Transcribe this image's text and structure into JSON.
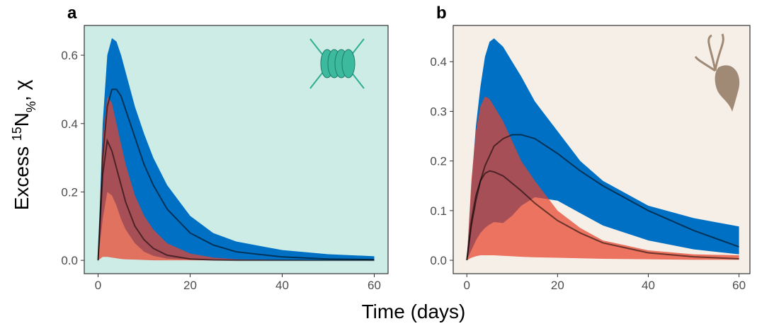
{
  "y_label": {
    "prefix": "Excess ",
    "sup": "15",
    "main": "N",
    "sub": "%",
    "suffix": ", χ"
  },
  "x_label": "Time (days)",
  "chart_data": [
    {
      "type": "ribbon",
      "panel": "a",
      "background": "#cdece6",
      "x": [
        0,
        1,
        2,
        3,
        4,
        5,
        6,
        8,
        10,
        12,
        15,
        20,
        25,
        30,
        40,
        50,
        60
      ],
      "xlim": [
        -3,
        63
      ],
      "xticks": [
        0,
        20,
        40,
        60
      ],
      "ylim": [
        -0.039,
        0.687
      ],
      "yticks": [
        {
          "value": 0,
          "label": "0.0"
        },
        0.2,
        0.4,
        0.6
      ],
      "series": [
        {
          "color": "#0070c4",
          "upper": [
            0,
            0.4,
            0.6,
            0.65,
            0.64,
            0.6,
            0.55,
            0.45,
            0.37,
            0.3,
            0.22,
            0.13,
            0.08,
            0.055,
            0.03,
            0.018,
            0.012
          ],
          "lower": [
            0,
            0.12,
            0.2,
            0.19,
            0.16,
            0.12,
            0.09,
            0.05,
            0.025,
            0.013,
            0.005,
            0.002,
            0.001,
            0,
            0,
            0,
            0
          ],
          "median": [
            0,
            0.3,
            0.45,
            0.5,
            0.5,
            0.48,
            0.44,
            0.36,
            0.28,
            0.22,
            0.15,
            0.08,
            0.045,
            0.025,
            0.01,
            0.004,
            0.002
          ]
        },
        {
          "color": "#e8432b",
          "upper": [
            0,
            0.35,
            0.48,
            0.46,
            0.4,
            0.34,
            0.28,
            0.19,
            0.13,
            0.09,
            0.05,
            0.02,
            0.008,
            0.003,
            0.001,
            0,
            0
          ],
          "lower": [
            0,
            0.01,
            0.01,
            0.008,
            0.006,
            0.004,
            0.003,
            0.002,
            0.001,
            0,
            0,
            0,
            0,
            0,
            0,
            0,
            0
          ],
          "median": [
            0,
            0.25,
            0.35,
            0.32,
            0.27,
            0.22,
            0.17,
            0.1,
            0.06,
            0.035,
            0.015,
            0.004,
            0.001,
            0,
            0,
            0,
            0
          ]
        }
      ]
    },
    {
      "type": "ribbon",
      "panel": "b",
      "background": "#f5efe8",
      "x": [
        0,
        1,
        2,
        3,
        4,
        5,
        6,
        8,
        10,
        12,
        15,
        20,
        25,
        30,
        40,
        50,
        60
      ],
      "xlim": [
        -3,
        62.4
      ],
      "xticks": [
        0,
        20,
        40,
        60
      ],
      "ylim": [
        -0.027,
        0.473
      ],
      "yticks": [
        {
          "value": 0,
          "label": "0.0"
        },
        0.1,
        0.2,
        0.3,
        0.4
      ],
      "series": [
        {
          "color": "#0070c4",
          "upper": [
            0,
            0.15,
            0.27,
            0.35,
            0.41,
            0.44,
            0.447,
            0.43,
            0.4,
            0.37,
            0.32,
            0.26,
            0.2,
            0.16,
            0.11,
            0.085,
            0.068
          ],
          "lower": [
            0,
            0.02,
            0.04,
            0.055,
            0.065,
            0.072,
            0.077,
            0.075,
            0.09,
            0.11,
            0.127,
            0.12,
            0.095,
            0.07,
            0.04,
            0.022,
            0.012
          ],
          "median": [
            0,
            0.07,
            0.12,
            0.16,
            0.19,
            0.21,
            0.23,
            0.245,
            0.253,
            0.253,
            0.245,
            0.215,
            0.18,
            0.15,
            0.1,
            0.06,
            0.027
          ]
        },
        {
          "color": "#e8432b",
          "upper": [
            0,
            0.16,
            0.26,
            0.31,
            0.33,
            0.325,
            0.31,
            0.28,
            0.24,
            0.2,
            0.16,
            0.1,
            0.065,
            0.04,
            0.02,
            0.012,
            0.01
          ],
          "lower": [
            0,
            0.005,
            0.008,
            0.01,
            0.01,
            0.01,
            0.01,
            0.009,
            0.008,
            0.007,
            0.006,
            0.005,
            0.004,
            0.003,
            0.002,
            0.001,
            0.001
          ],
          "median": [
            0,
            0.08,
            0.13,
            0.16,
            0.175,
            0.18,
            0.178,
            0.17,
            0.155,
            0.14,
            0.115,
            0.08,
            0.055,
            0.035,
            0.015,
            0.007,
            0.003
          ]
        }
      ]
    }
  ]
}
